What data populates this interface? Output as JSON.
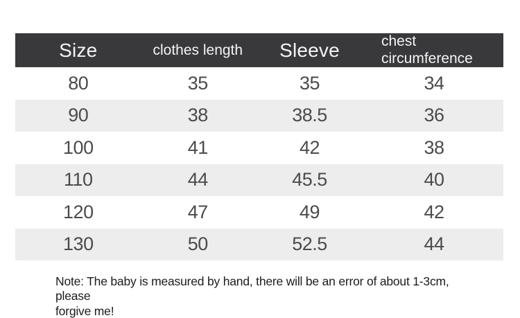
{
  "chart_data": {
    "type": "table",
    "columns": [
      "Size",
      "clothes length",
      "Sleeve",
      "chest circumference"
    ],
    "rows": [
      [
        "80",
        "35",
        "35",
        "34"
      ],
      [
        "90",
        "38",
        "38.5",
        "36"
      ],
      [
        "100",
        "41",
        "42",
        "38"
      ],
      [
        "110",
        "44",
        "45.5",
        "40"
      ],
      [
        "120",
        "47",
        "49",
        "42"
      ],
      [
        "130",
        "50",
        "52.5",
        "44"
      ]
    ],
    "note": "Note: The baby is measured by hand, there will be an error of about 1-3cm, please forgive me!"
  },
  "note": {
    "text": "Note: The baby is measured by hand, there will be an error of about 1-3cm, please\nforgive me!",
    "color": "#1c1c1c"
  },
  "colors": {
    "page_background": "#ffffff",
    "header_background": "#39393b",
    "header_text": "#f4f4f4",
    "zebra_row_background": "#ededed",
    "cell_text": "#4b4b4b"
  }
}
